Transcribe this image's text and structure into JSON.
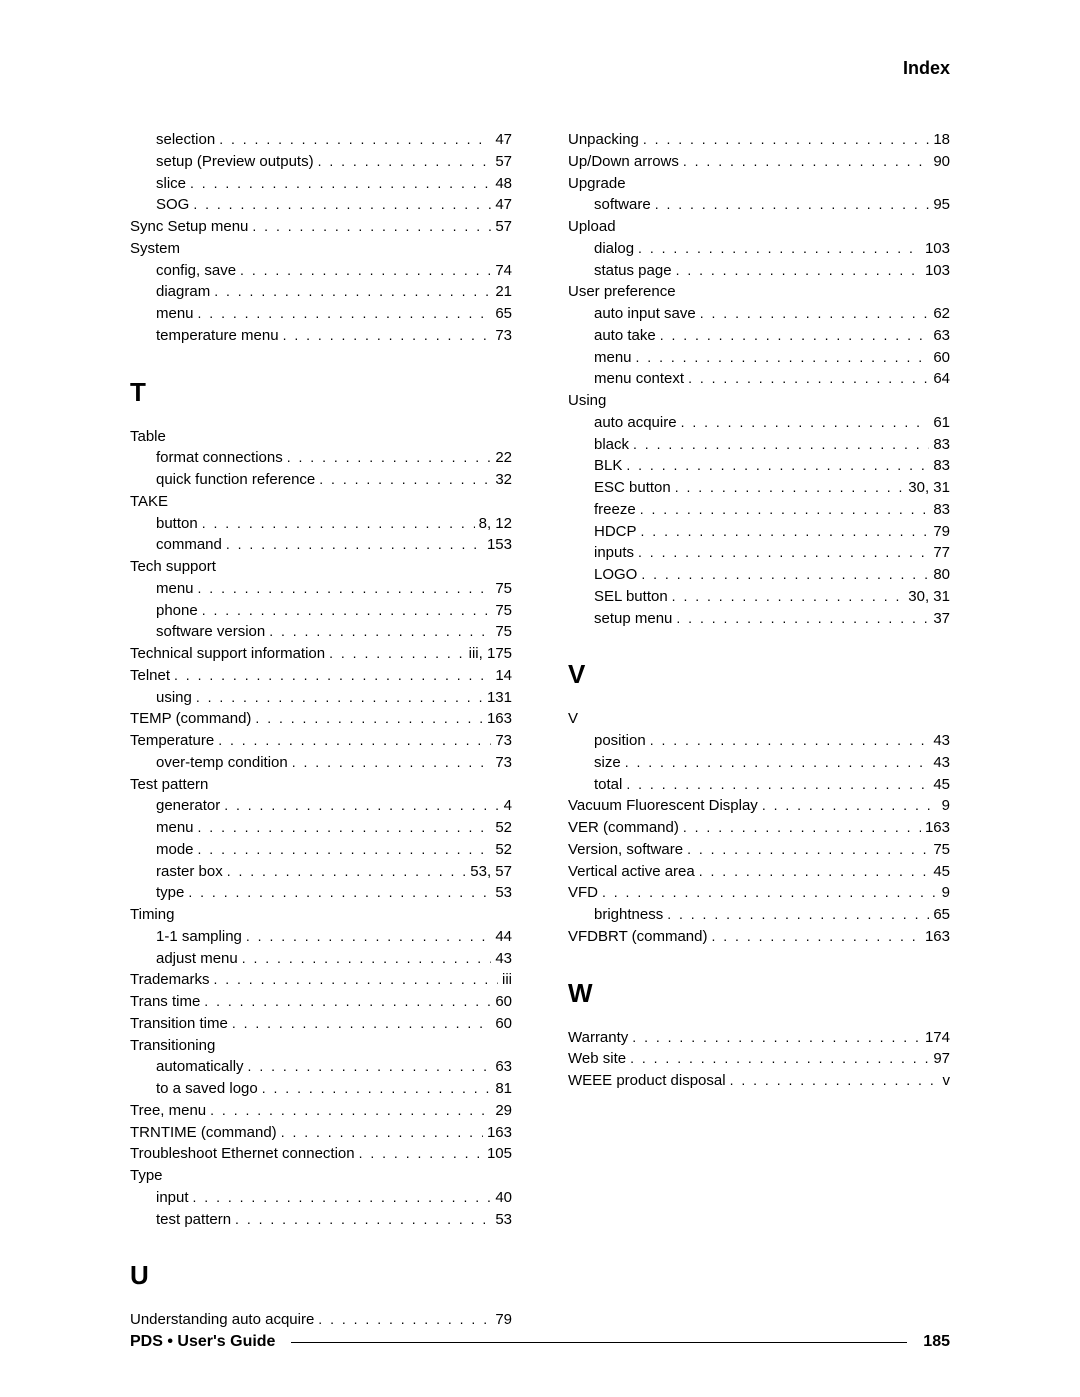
{
  "header": {
    "title": "Index"
  },
  "footer": {
    "title": "PDS • User's Guide",
    "page": "185"
  },
  "left": {
    "groups": [
      {
        "type": "entries",
        "entries": [
          {
            "t": "selection",
            "p": "47",
            "i": 1
          },
          {
            "t": "setup (Preview outputs)",
            "p": "57",
            "i": 1
          },
          {
            "t": "slice",
            "p": "48",
            "i": 1
          },
          {
            "t": "SOG",
            "p": "47",
            "i": 1
          },
          {
            "t": "Sync Setup menu",
            "p": "57",
            "i": 0
          },
          {
            "t": "System",
            "p": "",
            "i": 0,
            "nodots": true
          },
          {
            "t": "config, save",
            "p": "74",
            "i": 1
          },
          {
            "t": "diagram",
            "p": "21",
            "i": 1
          },
          {
            "t": "menu",
            "p": "65",
            "i": 1
          },
          {
            "t": "temperature menu",
            "p": "73",
            "i": 1
          }
        ]
      },
      {
        "type": "letter",
        "label": "T"
      },
      {
        "type": "entries",
        "entries": [
          {
            "t": "Table",
            "p": "",
            "i": 0,
            "nodots": true
          },
          {
            "t": "format connections",
            "p": "22",
            "i": 1
          },
          {
            "t": "quick function reference",
            "p": "32",
            "i": 1
          },
          {
            "t": "TAKE",
            "p": "",
            "i": 0,
            "nodots": true
          },
          {
            "t": "button",
            "p": "8, 12",
            "i": 1
          },
          {
            "t": "command",
            "p": "153",
            "i": 1
          },
          {
            "t": "Tech support",
            "p": "",
            "i": 0,
            "nodots": true
          },
          {
            "t": "menu",
            "p": "75",
            "i": 1
          },
          {
            "t": "phone",
            "p": "75",
            "i": 1
          },
          {
            "t": "software version",
            "p": "75",
            "i": 1
          },
          {
            "t": "Technical support information",
            "p": " iii, 175",
            "i": 0
          },
          {
            "t": "Telnet",
            "p": "14",
            "i": 0
          },
          {
            "t": "using",
            "p": "131",
            "i": 1
          },
          {
            "t": "TEMP (command)",
            "p": "163",
            "i": 0
          },
          {
            "t": "Temperature",
            "p": "73",
            "i": 0
          },
          {
            "t": "over-temp condition",
            "p": "73",
            "i": 1
          },
          {
            "t": "Test pattern",
            "p": "",
            "i": 0,
            "nodots": true
          },
          {
            "t": "generator",
            "p": "4",
            "i": 1
          },
          {
            "t": "menu",
            "p": "52",
            "i": 1
          },
          {
            "t": "mode",
            "p": "52",
            "i": 1
          },
          {
            "t": "raster box",
            "p": "53, 57",
            "i": 1
          },
          {
            "t": "type",
            "p": "53",
            "i": 1
          },
          {
            "t": "Timing",
            "p": "",
            "i": 0,
            "nodots": true
          },
          {
            "t": "1-1 sampling",
            "p": "44",
            "i": 1
          },
          {
            "t": "adjust menu",
            "p": "43",
            "i": 1
          },
          {
            "t": "Trademarks",
            "p": " iii",
            "i": 0
          },
          {
            "t": "Trans time",
            "p": "60",
            "i": 0
          },
          {
            "t": "Transition time",
            "p": "60",
            "i": 0
          },
          {
            "t": "Transitioning",
            "p": "",
            "i": 0,
            "nodots": true
          },
          {
            "t": "automatically",
            "p": "63",
            "i": 1
          },
          {
            "t": "to a saved logo",
            "p": "81",
            "i": 1
          },
          {
            "t": "Tree, menu",
            "p": "29",
            "i": 0
          },
          {
            "t": "TRNTIME (command)",
            "p": "163",
            "i": 0
          },
          {
            "t": "Troubleshoot Ethernet connection",
            "p": "105",
            "i": 0
          },
          {
            "t": "Type",
            "p": "",
            "i": 0,
            "nodots": true
          },
          {
            "t": "input",
            "p": "40",
            "i": 1
          },
          {
            "t": "test pattern",
            "p": "53",
            "i": 1
          }
        ]
      },
      {
        "type": "letter",
        "label": "U"
      },
      {
        "type": "entries",
        "entries": [
          {
            "t": "Understanding auto acquire",
            "p": "79",
            "i": 0
          }
        ]
      }
    ]
  },
  "right": {
    "groups": [
      {
        "type": "entries",
        "entries": [
          {
            "t": "Unpacking",
            "p": "18",
            "i": 0
          },
          {
            "t": "Up/Down arrows",
            "p": "90",
            "i": 0
          },
          {
            "t": "Upgrade",
            "p": "",
            "i": 0,
            "nodots": true
          },
          {
            "t": "software",
            "p": "95",
            "i": 1
          },
          {
            "t": "Upload",
            "p": "",
            "i": 0,
            "nodots": true
          },
          {
            "t": "dialog",
            "p": "103",
            "i": 1
          },
          {
            "t": "status page",
            "p": "103",
            "i": 1
          },
          {
            "t": "User preference",
            "p": "",
            "i": 0,
            "nodots": true
          },
          {
            "t": "auto input save",
            "p": "62",
            "i": 1
          },
          {
            "t": "auto take",
            "p": "63",
            "i": 1
          },
          {
            "t": "menu",
            "p": "60",
            "i": 1
          },
          {
            "t": "menu context",
            "p": "64",
            "i": 1
          },
          {
            "t": "Using",
            "p": "",
            "i": 0,
            "nodots": true
          },
          {
            "t": "auto acquire",
            "p": "61",
            "i": 1
          },
          {
            "t": "black",
            "p": "83",
            "i": 1
          },
          {
            "t": "BLK",
            "p": "83",
            "i": 1
          },
          {
            "t": "ESC button",
            "p": "30, 31",
            "i": 1
          },
          {
            "t": "freeze",
            "p": "83",
            "i": 1
          },
          {
            "t": "HDCP",
            "p": "79",
            "i": 1
          },
          {
            "t": "inputs",
            "p": "77",
            "i": 1
          },
          {
            "t": "LOGO",
            "p": "80",
            "i": 1
          },
          {
            "t": "SEL button",
            "p": "30, 31",
            "i": 1
          },
          {
            "t": "setup menu",
            "p": "37",
            "i": 1
          }
        ]
      },
      {
        "type": "letter",
        "label": "V"
      },
      {
        "type": "entries",
        "entries": [
          {
            "t": "V",
            "p": "",
            "i": 0,
            "nodots": true
          },
          {
            "t": "position",
            "p": "43",
            "i": 1
          },
          {
            "t": "size",
            "p": "43",
            "i": 1
          },
          {
            "t": "total",
            "p": "45",
            "i": 1
          },
          {
            "t": "Vacuum Fluorescent Display",
            "p": "9",
            "i": 0
          },
          {
            "t": "VER (command)",
            "p": "163",
            "i": 0
          },
          {
            "t": "Version, software",
            "p": "75",
            "i": 0
          },
          {
            "t": "Vertical active area",
            "p": "45",
            "i": 0
          },
          {
            "t": "VFD",
            "p": "9",
            "i": 0
          },
          {
            "t": "brightness",
            "p": "65",
            "i": 1
          },
          {
            "t": "VFDBRT (command)",
            "p": "163",
            "i": 0
          }
        ]
      },
      {
        "type": "letter",
        "label": "W"
      },
      {
        "type": "entries",
        "entries": [
          {
            "t": "Warranty",
            "p": "174",
            "i": 0
          },
          {
            "t": "Web site",
            "p": "97",
            "i": 0
          },
          {
            "t": "WEEE product disposal",
            "p": "v",
            "i": 0
          }
        ]
      }
    ]
  }
}
